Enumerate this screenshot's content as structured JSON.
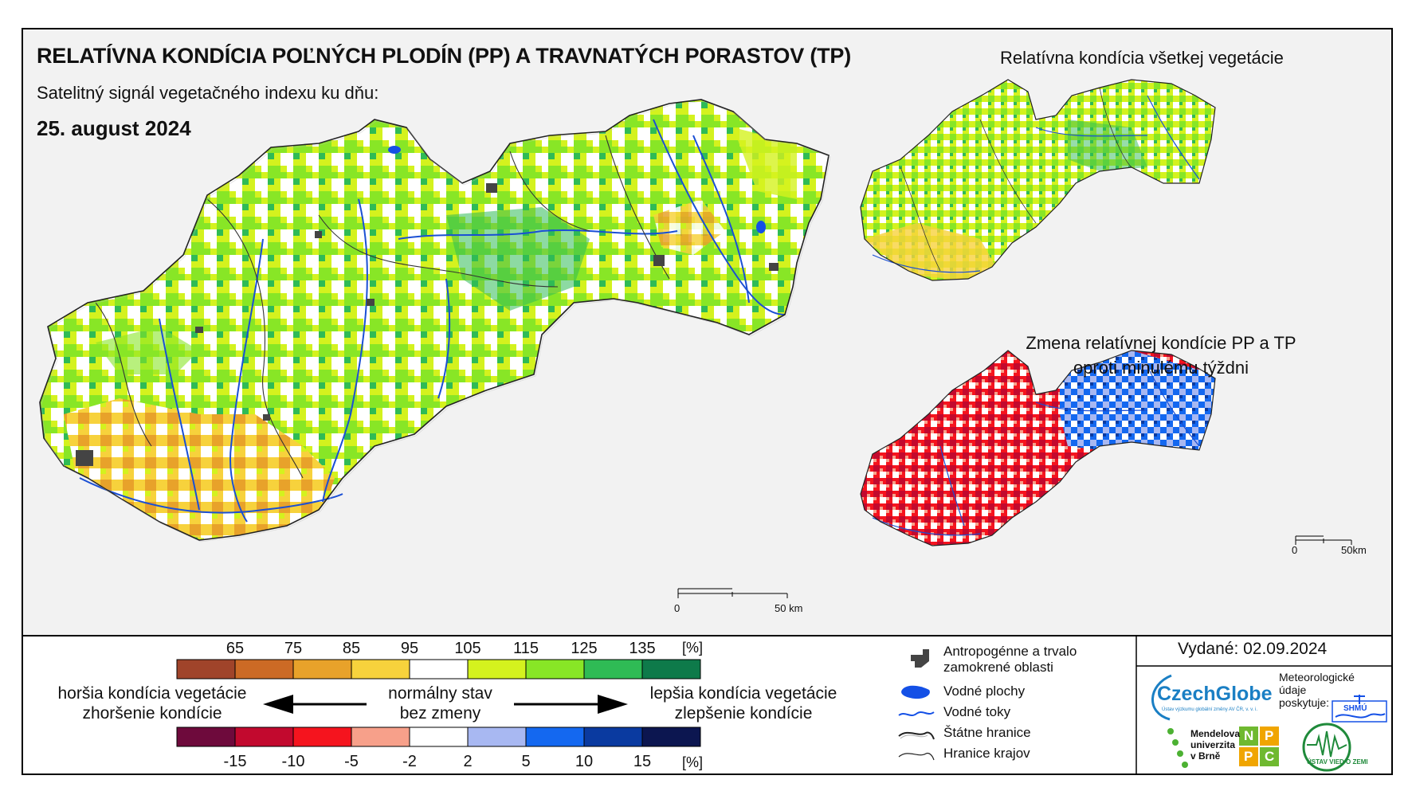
{
  "title": "RELATÍVNA KONDÍCIA POĽNÝCH PLODÍN (PP) A TRAVNATÝCH PORASTOV (TP)",
  "subtitle": "Satelitný signál vegetačného indexu ku dňu:",
  "date": "25. august 2024",
  "inset1_title": "Relatívna kondícia všetkej vegetácie",
  "inset2_title_line1": "Zmena relatívnej kondície PP a TP",
  "inset2_title_line2": "oproti minulému týždni",
  "main_scale": {
    "zero": "0",
    "label": "50 km"
  },
  "inset_scale": {
    "zero": "0",
    "label": "50km"
  },
  "legend_top": {
    "ticks": [
      "65",
      "75",
      "85",
      "95",
      "105",
      "115",
      "125",
      "135"
    ],
    "unit": "[%]",
    "colors": [
      "#a0442a",
      "#cc6a25",
      "#e8a22a",
      "#f7d23c",
      "#ffffff",
      "#d4f21e",
      "#88e626",
      "#2fbb55",
      "#0e7a4a"
    ]
  },
  "legend_bottom": {
    "ticks": [
      "-15",
      "-10",
      "-5",
      "-2",
      "2",
      "5",
      "10",
      "15"
    ],
    "unit": "[%]",
    "colors": [
      "#6e0a3c",
      "#c2092e",
      "#f5141e",
      "#f7a08a",
      "#ffffff",
      "#a8b8f2",
      "#1468f0",
      "#0a3aa0",
      "#0c1650"
    ]
  },
  "legend_text": {
    "worse_line1": "horšia kondícia vegetácie",
    "worse_line2": "zhoršenie kondície",
    "normal_line1": "normálny stav",
    "normal_line2": "bez zmeny",
    "better_line1": "lepšia kondícia vegetácie",
    "better_line2": "zlepšenie kondície"
  },
  "map_key": [
    {
      "icon": "anthropogenic-icon",
      "label": "Antropogénne a trvalo zamokrené oblasti"
    },
    {
      "icon": "water-area-icon",
      "label": "Vodné plochy"
    },
    {
      "icon": "stream-icon",
      "label": "Vodné toky"
    },
    {
      "icon": "state-border-icon",
      "label": "Štátne hranice"
    },
    {
      "icon": "region-border-icon",
      "label": "Hranice krajov"
    }
  ],
  "issued": "Vydané: 02.09.2024",
  "logos": {
    "czechglobe": "CzechGlobe",
    "czechglobe_sub": "Ústav výzkumu globální změny AV ČR, v. v. i.",
    "meteo_line1": "Meteorologické",
    "meteo_line2": "údaje",
    "meteo_line3": "poskytuje:",
    "shmu": "SHMÚ",
    "mendel_line1": "Mendelova",
    "mendel_line2": "univerzita",
    "mendel_line3": "v Brně",
    "nppc_n": "N",
    "nppc_p1": "P",
    "nppc_p2": "P",
    "nppc_c": "C",
    "uvz": "ÚSTAV VIED O ZEMI"
  }
}
